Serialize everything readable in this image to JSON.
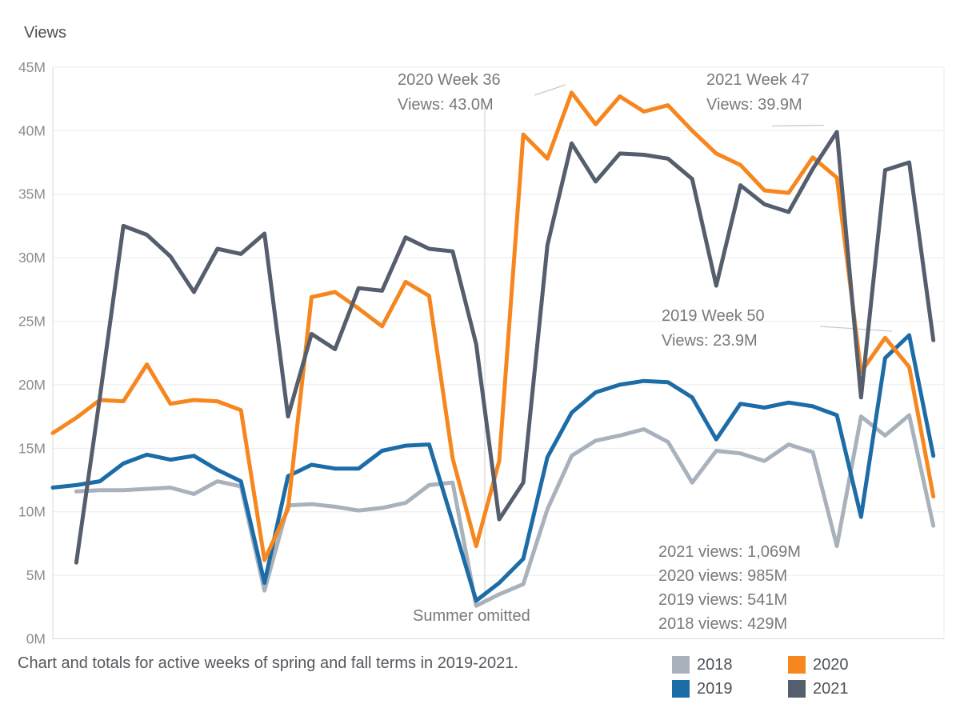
{
  "chart_data": {
    "type": "line",
    "title": "Views",
    "x_unit": "week of year",
    "grid": "horizontal",
    "ylim": [
      0,
      45
    ],
    "ytick_step": 5,
    "ytick_labels": [
      "0M",
      "5M",
      "10M",
      "15M",
      "20M",
      "25M",
      "30M",
      "35M",
      "40M",
      "45M"
    ],
    "weeks": [
      4,
      5,
      6,
      7,
      8,
      9,
      10,
      11,
      12,
      13,
      14,
      15,
      16,
      17,
      18,
      19,
      20,
      21,
      22,
      33,
      34,
      35,
      36,
      37,
      38,
      39,
      40,
      41,
      42,
      43,
      44,
      45,
      46,
      47,
      48,
      49,
      50,
      51
    ],
    "summer_gap_between_weeks": [
      22,
      33
    ],
    "series": [
      {
        "name": "2018",
        "color": "#A9B2BC",
        "values": [
          null,
          11.6,
          11.7,
          11.7,
          11.8,
          11.9,
          11.4,
          12.4,
          12.0,
          3.8,
          10.5,
          10.6,
          10.4,
          10.1,
          10.3,
          10.7,
          12.1,
          12.3,
          2.6,
          3.5,
          4.3,
          10.2,
          14.4,
          15.6,
          16.0,
          16.5,
          15.5,
          12.3,
          14.8,
          14.6,
          14.0,
          15.3,
          14.7,
          7.3,
          17.5,
          16.0,
          17.6,
          8.9
        ]
      },
      {
        "name": "2019",
        "color": "#1C6CA7",
        "values": [
          11.9,
          12.1,
          12.4,
          13.8,
          14.5,
          14.1,
          14.4,
          13.3,
          12.4,
          4.4,
          12.8,
          13.7,
          13.4,
          13.4,
          14.8,
          15.2,
          15.3,
          9.2,
          3.0,
          4.4,
          6.3,
          14.3,
          17.8,
          19.4,
          20.0,
          20.3,
          20.2,
          19.0,
          15.7,
          18.5,
          18.2,
          18.6,
          18.3,
          17.6,
          9.6,
          22.1,
          23.9,
          14.4
        ]
      },
      {
        "name": "2020",
        "color": "#F6871F",
        "values": [
          16.2,
          17.4,
          18.8,
          18.7,
          21.6,
          18.5,
          18.8,
          18.7,
          18.0,
          6.2,
          10.2,
          26.9,
          27.3,
          26.0,
          24.6,
          28.1,
          27.0,
          14.2,
          7.3,
          14.0,
          39.7,
          37.8,
          43.0,
          40.5,
          42.7,
          41.5,
          42.0,
          40.0,
          38.2,
          37.3,
          35.3,
          35.1,
          37.9,
          36.3,
          21.0,
          23.7,
          21.4,
          11.2
        ]
      },
      {
        "name": "2021",
        "color": "#555E6C",
        "values": [
          null,
          6.0,
          19.0,
          32.5,
          31.8,
          30.1,
          27.3,
          30.7,
          30.3,
          31.9,
          17.5,
          24.0,
          22.8,
          27.6,
          27.4,
          31.6,
          30.7,
          30.5,
          23.2,
          9.4,
          12.3,
          31.0,
          39.0,
          36.0,
          38.2,
          38.1,
          37.8,
          36.2,
          27.8,
          35.7,
          34.2,
          33.6,
          37.0,
          39.9,
          19.0,
          36.9,
          37.5,
          23.5
        ]
      }
    ],
    "annotations": [
      {
        "id": "2020-week-36",
        "line1": "2020 Week 36",
        "line2": "Views: 43.0M"
      },
      {
        "id": "2021-week-47",
        "line1": "2021 Week 47",
        "line2": "Views: 39.9M"
      },
      {
        "id": "2019-week-50",
        "line1": "2019 Week 50",
        "line2": "Views: 23.9M"
      }
    ],
    "summer_note": "Summer omitted",
    "totals": [
      "2021 views: 1,069M",
      "2020 views: 985M",
      "2019 views: 541M",
      "2018 views: 429M"
    ],
    "caption": "Chart and totals for active weeks of spring and fall terms in 2019-2021.",
    "legend": [
      {
        "label": "2018",
        "color": "#A9B2BC"
      },
      {
        "label": "2019",
        "color": "#1C6CA7"
      },
      {
        "label": "2020",
        "color": "#F6871F"
      },
      {
        "label": "2021",
        "color": "#555E6C"
      }
    ]
  }
}
